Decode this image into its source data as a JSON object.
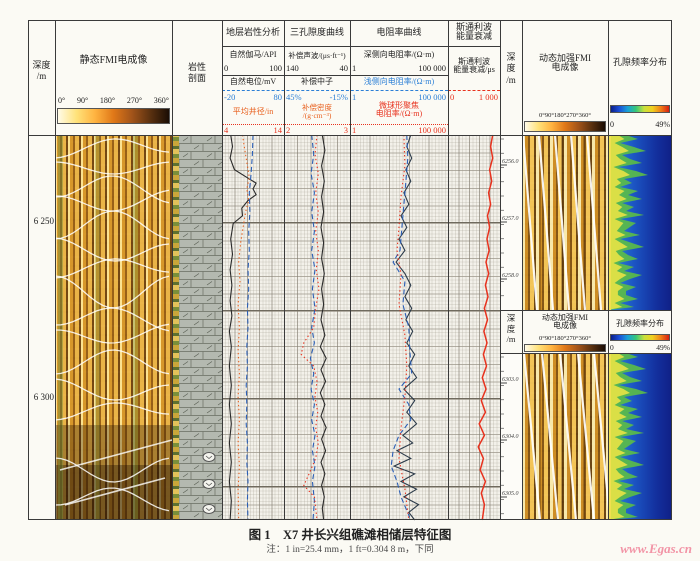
{
  "figure": {
    "caption": "图 1　X7 井长兴组礁滩相储层特征图",
    "note": "注：1 in=25.4 mm，1 ft=0.304 8 m，下同",
    "watermark": "www.Egas.cn"
  },
  "colors": {
    "blue": "#2b7fd6",
    "orange": "#e8601e",
    "red": "#e8321e"
  },
  "left": {
    "depth_title": "深度",
    "depth_unit": "/m",
    "depth_labels": [
      "6 250",
      "6 300"
    ],
    "fmi_title": "静态FMI电成像",
    "fmi_scale": [
      "0°",
      "90°",
      "180°",
      "270°",
      "360°"
    ],
    "lith_line1": "岩性",
    "lith_line2": "剖面"
  },
  "tracks": {
    "t1": {
      "title": "地层岩性分析",
      "c1_label": "自然伽马/API",
      "c1_min": "0",
      "c1_max": "100",
      "c2_label": "自然电位/mV",
      "c2_min": "-20",
      "c2_max": "80",
      "c3_label": "平均井径/in",
      "c3_min": "4",
      "c3_max": "14"
    },
    "t2": {
      "title": "三孔隙度曲线",
      "c1_label": "补偿声波/(μs·ft⁻¹)",
      "c1_min": "140",
      "c1_max": "40",
      "c2_label": "补偿中子",
      "c2_min": "45%",
      "c2_max": "-15%",
      "c3_label1": "补偿密度",
      "c3_label2": "/(g·cm⁻³)",
      "c3_min": "2",
      "c3_max": "3"
    },
    "t3": {
      "title": "电阻率曲线",
      "c1_label": "深侧向电阻率/(Ω·m)",
      "c1_min": "1",
      "c1_max": "100 000",
      "c2_label": "浅侧向电阻率/(Ω·m)",
      "c2_min": "1",
      "c2_max": "100 000",
      "c3_label1": "微球形聚焦",
      "c3_label2": "电阻率/(Ω·m)",
      "c3_min": "1",
      "c3_max": "100 000"
    },
    "t4": {
      "title1": "斯通利波",
      "title2": "能量衰减",
      "label1": "斯通利波",
      "label2": "能量衰减/μs",
      "min": "0",
      "max": "1 000"
    }
  },
  "right": {
    "panel1": {
      "depth": [
        "深",
        "度",
        "/m"
      ],
      "fmi_title1": "动态加强FMI",
      "fmi_title2": "电成像",
      "fmi_scale": "0°90°180°270°360°",
      "por_title": "孔隙频率分布",
      "por_min": "0",
      "por_max": "49%",
      "depth_labels": [
        "6256.0",
        "6257.0",
        "6258.0"
      ]
    },
    "panel2": {
      "depth": [
        "深",
        "度",
        "/m"
      ],
      "fmi_title1": "动态加强FMI",
      "fmi_title2": "电成像",
      "fmi_scale": "0°90°180°270°360°",
      "por_title": "孔隙频率分布",
      "por_min": "0",
      "por_max": "49%",
      "depth_labels": [
        "6303.0",
        "6304.0",
        "6305.0"
      ]
    }
  },
  "chart_data": {
    "type": "well-log",
    "depth_range_m": [
      6236,
      6345
    ],
    "labeled_depths_m": [
      6250,
      6300
    ],
    "zoom_panels_depth_m": [
      [
        6255.5,
        6258.5
      ],
      [
        6302.5,
        6305.5
      ]
    ],
    "tracks": [
      {
        "name": "地层岩性分析",
        "curves": [
          "自然伽马/API 0–100",
          "自然电位/mV -20–80",
          "平均井径/in 4–14"
        ]
      },
      {
        "name": "三孔隙度曲线",
        "curves": [
          "补偿声波/(μs·ft⁻¹) 140–40",
          "补偿中子 45%–-15%",
          "补偿密度/(g·cm⁻³) 2–3"
        ]
      },
      {
        "name": "电阻率曲线",
        "scale": "log",
        "curves": [
          "深侧向电阻率/(Ω·m) 1–100 000",
          "浅侧向电阻率/(Ω·m) 1–100 000",
          "微球形聚焦电阻率/(Ω·m) 1–100 000"
        ]
      },
      {
        "name": "斯通利波能量衰减",
        "curves": [
          "斯通利波能量衰减/μs 0–1 000"
        ]
      }
    ],
    "curves": [
      {
        "id": "gr",
        "track": "t1",
        "color": "#2a2a2a",
        "style": "solid",
        "points": [
          [
            0,
            0.14
          ],
          [
            0.03,
            0.17
          ],
          [
            0.06,
            0.13
          ],
          [
            0.09,
            0.2
          ],
          [
            0.115,
            0.45
          ],
          [
            0.125,
            0.55
          ],
          [
            0.14,
            0.5
          ],
          [
            0.155,
            0.55
          ],
          [
            0.17,
            0.42
          ],
          [
            0.19,
            0.32
          ],
          [
            0.21,
            0.33
          ],
          [
            0.23,
            0.18
          ],
          [
            0.27,
            0.14
          ],
          [
            0.31,
            0.17
          ],
          [
            0.35,
            0.13
          ],
          [
            0.39,
            0.16
          ],
          [
            0.43,
            0.13
          ],
          [
            0.47,
            0.16
          ],
          [
            0.51,
            0.12
          ],
          [
            0.55,
            0.15
          ],
          [
            0.6,
            0.12
          ],
          [
            0.65,
            0.15
          ],
          [
            0.7,
            0.12
          ],
          [
            0.75,
            0.15
          ],
          [
            0.8,
            0.12
          ],
          [
            0.85,
            0.15
          ],
          [
            0.9,
            0.12
          ],
          [
            0.95,
            0.15
          ],
          [
            1,
            0.13
          ]
        ]
      },
      {
        "id": "cal",
        "track": "t1",
        "color": "#e8601e",
        "style": "dotted",
        "points": [
          [
            0,
            0.33
          ],
          [
            0.04,
            0.37
          ],
          [
            0.08,
            0.41
          ],
          [
            0.11,
            0.44
          ],
          [
            0.14,
            0.4
          ],
          [
            0.17,
            0.43
          ],
          [
            0.2,
            0.38
          ],
          [
            0.24,
            0.34
          ],
          [
            0.28,
            0.3
          ],
          [
            0.33,
            0.27
          ],
          [
            0.38,
            0.29
          ],
          [
            0.44,
            0.26
          ],
          [
            0.5,
            0.28
          ],
          [
            0.56,
            0.26
          ],
          [
            0.62,
            0.28
          ],
          [
            0.68,
            0.26
          ],
          [
            0.74,
            0.28
          ],
          [
            0.8,
            0.26
          ],
          [
            0.86,
            0.28
          ],
          [
            0.92,
            0.26
          ],
          [
            1,
            0.27
          ]
        ]
      },
      {
        "id": "sp",
        "track": "t1",
        "color": "#2b5fb6",
        "style": "dashed",
        "points": [
          [
            0,
            0.5
          ],
          [
            0.05,
            0.49
          ],
          [
            0.1,
            0.47
          ],
          [
            0.15,
            0.44
          ],
          [
            0.2,
            0.45
          ],
          [
            0.25,
            0.43
          ],
          [
            0.3,
            0.44
          ],
          [
            0.35,
            0.42
          ],
          [
            0.4,
            0.43
          ],
          [
            0.45,
            0.41
          ],
          [
            0.5,
            0.42
          ],
          [
            0.55,
            0.4
          ],
          [
            0.6,
            0.41
          ],
          [
            0.65,
            0.39
          ],
          [
            0.7,
            0.4
          ],
          [
            0.75,
            0.39
          ],
          [
            0.8,
            0.41
          ],
          [
            0.85,
            0.4
          ],
          [
            0.9,
            0.42
          ],
          [
            0.95,
            0.41
          ],
          [
            1,
            0.42
          ]
        ]
      },
      {
        "id": "ac",
        "track": "t2",
        "color": "#2a2a2a",
        "style": "solid",
        "points": [
          [
            0,
            0.58
          ],
          [
            0.04,
            0.62
          ],
          [
            0.08,
            0.57
          ],
          [
            0.12,
            0.61
          ],
          [
            0.16,
            0.57
          ],
          [
            0.2,
            0.6
          ],
          [
            0.24,
            0.56
          ],
          [
            0.28,
            0.6
          ],
          [
            0.32,
            0.57
          ],
          [
            0.36,
            0.61
          ],
          [
            0.4,
            0.57
          ],
          [
            0.44,
            0.6
          ],
          [
            0.48,
            0.56
          ],
          [
            0.52,
            0.62
          ],
          [
            0.55,
            0.55
          ],
          [
            0.58,
            0.64
          ],
          [
            0.61,
            0.56
          ],
          [
            0.64,
            0.63
          ],
          [
            0.67,
            0.55
          ],
          [
            0.7,
            0.62
          ],
          [
            0.73,
            0.56
          ],
          [
            0.76,
            0.64
          ],
          [
            0.79,
            0.57
          ],
          [
            0.82,
            0.63
          ],
          [
            0.85,
            0.56
          ],
          [
            0.88,
            0.62
          ],
          [
            0.91,
            0.57
          ],
          [
            0.94,
            0.61
          ],
          [
            0.97,
            0.58
          ],
          [
            1,
            0.6
          ]
        ]
      },
      {
        "id": "cnl",
        "track": "t2",
        "color": "#2b5fb6",
        "style": "dashed",
        "points": [
          [
            0,
            0.42
          ],
          [
            0.05,
            0.45
          ],
          [
            0.1,
            0.41
          ],
          [
            0.15,
            0.46
          ],
          [
            0.2,
            0.42
          ],
          [
            0.25,
            0.46
          ],
          [
            0.3,
            0.42
          ],
          [
            0.35,
            0.47
          ],
          [
            0.4,
            0.43
          ],
          [
            0.45,
            0.47
          ],
          [
            0.5,
            0.42
          ],
          [
            0.54,
            0.46
          ],
          [
            0.58,
            0.4
          ],
          [
            0.62,
            0.45
          ],
          [
            0.66,
            0.41
          ],
          [
            0.7,
            0.46
          ],
          [
            0.74,
            0.42
          ],
          [
            0.78,
            0.47
          ],
          [
            0.82,
            0.43
          ],
          [
            0.86,
            0.47
          ],
          [
            0.9,
            0.43
          ],
          [
            0.95,
            0.46
          ],
          [
            1,
            0.44
          ]
        ]
      },
      {
        "id": "den",
        "track": "t2",
        "color": "#e8321e",
        "style": "dotted",
        "points": [
          [
            0,
            0.5
          ],
          [
            0.05,
            0.47
          ],
          [
            0.1,
            0.52
          ],
          [
            0.15,
            0.48
          ],
          [
            0.2,
            0.52
          ],
          [
            0.25,
            0.48
          ],
          [
            0.3,
            0.52
          ],
          [
            0.35,
            0.49
          ],
          [
            0.4,
            0.53
          ],
          [
            0.45,
            0.48
          ],
          [
            0.5,
            0.45
          ],
          [
            0.54,
            0.3
          ],
          [
            0.57,
            0.26
          ],
          [
            0.6,
            0.45
          ],
          [
            0.64,
            0.5
          ],
          [
            0.68,
            0.47
          ],
          [
            0.72,
            0.51
          ],
          [
            0.76,
            0.48
          ],
          [
            0.8,
            0.52
          ],
          [
            0.84,
            0.48
          ],
          [
            0.88,
            0.38
          ],
          [
            0.91,
            0.3
          ],
          [
            0.94,
            0.46
          ],
          [
            1,
            0.5
          ]
        ]
      },
      {
        "id": "rd",
        "track": "t3",
        "color": "#2c3b4a",
        "style": "solid",
        "points": [
          [
            0,
            0.62
          ],
          [
            0.03,
            0.58
          ],
          [
            0.06,
            0.63
          ],
          [
            0.09,
            0.57
          ],
          [
            0.12,
            0.62
          ],
          [
            0.15,
            0.55
          ],
          [
            0.18,
            0.6
          ],
          [
            0.21,
            0.52
          ],
          [
            0.24,
            0.58
          ],
          [
            0.27,
            0.5
          ],
          [
            0.3,
            0.56
          ],
          [
            0.33,
            0.47
          ],
          [
            0.36,
            0.56
          ],
          [
            0.39,
            0.62
          ],
          [
            0.42,
            0.56
          ],
          [
            0.45,
            0.63
          ],
          [
            0.48,
            0.57
          ],
          [
            0.51,
            0.64
          ],
          [
            0.54,
            0.58
          ],
          [
            0.57,
            0.66
          ],
          [
            0.6,
            0.6
          ],
          [
            0.63,
            0.68
          ],
          [
            0.66,
            0.55
          ],
          [
            0.69,
            0.66
          ],
          [
            0.72,
            0.58
          ],
          [
            0.75,
            0.68
          ],
          [
            0.78,
            0.54
          ],
          [
            0.8,
            0.64
          ],
          [
            0.82,
            0.48
          ],
          [
            0.84,
            0.62
          ],
          [
            0.86,
            0.45
          ],
          [
            0.88,
            0.66
          ],
          [
            0.9,
            0.52
          ],
          [
            0.92,
            0.68
          ],
          [
            0.94,
            0.55
          ],
          [
            0.96,
            0.7
          ],
          [
            0.98,
            0.6
          ],
          [
            1,
            0.66
          ]
        ]
      },
      {
        "id": "rs",
        "track": "t3",
        "color": "#2b5fb6",
        "style": "dashed",
        "points": [
          [
            0,
            0.58
          ],
          [
            0.06,
            0.59
          ],
          [
            0.12,
            0.57
          ],
          [
            0.18,
            0.55
          ],
          [
            0.24,
            0.53
          ],
          [
            0.3,
            0.51
          ],
          [
            0.33,
            0.44
          ],
          [
            0.38,
            0.56
          ],
          [
            0.44,
            0.54
          ],
          [
            0.5,
            0.6
          ],
          [
            0.56,
            0.61
          ],
          [
            0.62,
            0.63
          ],
          [
            0.66,
            0.5
          ],
          [
            0.7,
            0.6
          ],
          [
            0.74,
            0.62
          ],
          [
            0.78,
            0.5
          ],
          [
            0.82,
            0.44
          ],
          [
            0.86,
            0.42
          ],
          [
            0.9,
            0.48
          ],
          [
            0.94,
            0.52
          ],
          [
            1,
            0.62
          ]
        ]
      },
      {
        "id": "rmsfl",
        "track": "t3",
        "color": "#e8321e",
        "style": "dotted",
        "points": [
          [
            0,
            0.55
          ],
          [
            0.08,
            0.56
          ],
          [
            0.16,
            0.52
          ],
          [
            0.24,
            0.5
          ],
          [
            0.3,
            0.48
          ],
          [
            0.36,
            0.52
          ],
          [
            0.44,
            0.5
          ],
          [
            0.52,
            0.56
          ],
          [
            0.6,
            0.58
          ],
          [
            0.68,
            0.56
          ],
          [
            0.76,
            0.52
          ],
          [
            0.84,
            0.5
          ],
          [
            0.92,
            0.56
          ],
          [
            1,
            0.6
          ]
        ]
      },
      {
        "id": "stoneley",
        "track": "t4",
        "color": "#e8321e",
        "style": "solid",
        "points": [
          [
            0,
            0.86
          ],
          [
            0.03,
            0.82
          ],
          [
            0.06,
            0.86
          ],
          [
            0.09,
            0.8
          ],
          [
            0.12,
            0.84
          ],
          [
            0.15,
            0.78
          ],
          [
            0.18,
            0.82
          ],
          [
            0.21,
            0.76
          ],
          [
            0.24,
            0.8
          ],
          [
            0.27,
            0.75
          ],
          [
            0.3,
            0.79
          ],
          [
            0.33,
            0.73
          ],
          [
            0.36,
            0.78
          ],
          [
            0.39,
            0.72
          ],
          [
            0.42,
            0.77
          ],
          [
            0.45,
            0.7
          ],
          [
            0.48,
            0.76
          ],
          [
            0.51,
            0.69
          ],
          [
            0.54,
            0.75
          ],
          [
            0.57,
            0.68
          ],
          [
            0.6,
            0.74
          ],
          [
            0.63,
            0.66
          ],
          [
            0.66,
            0.73
          ],
          [
            0.69,
            0.64
          ],
          [
            0.72,
            0.72
          ],
          [
            0.75,
            0.6
          ],
          [
            0.78,
            0.7
          ],
          [
            0.81,
            0.58
          ],
          [
            0.84,
            0.68
          ],
          [
            0.87,
            0.62
          ],
          [
            0.9,
            0.72
          ],
          [
            0.93,
            0.64
          ],
          [
            0.96,
            0.7
          ],
          [
            1,
            0.66
          ]
        ]
      }
    ]
  }
}
